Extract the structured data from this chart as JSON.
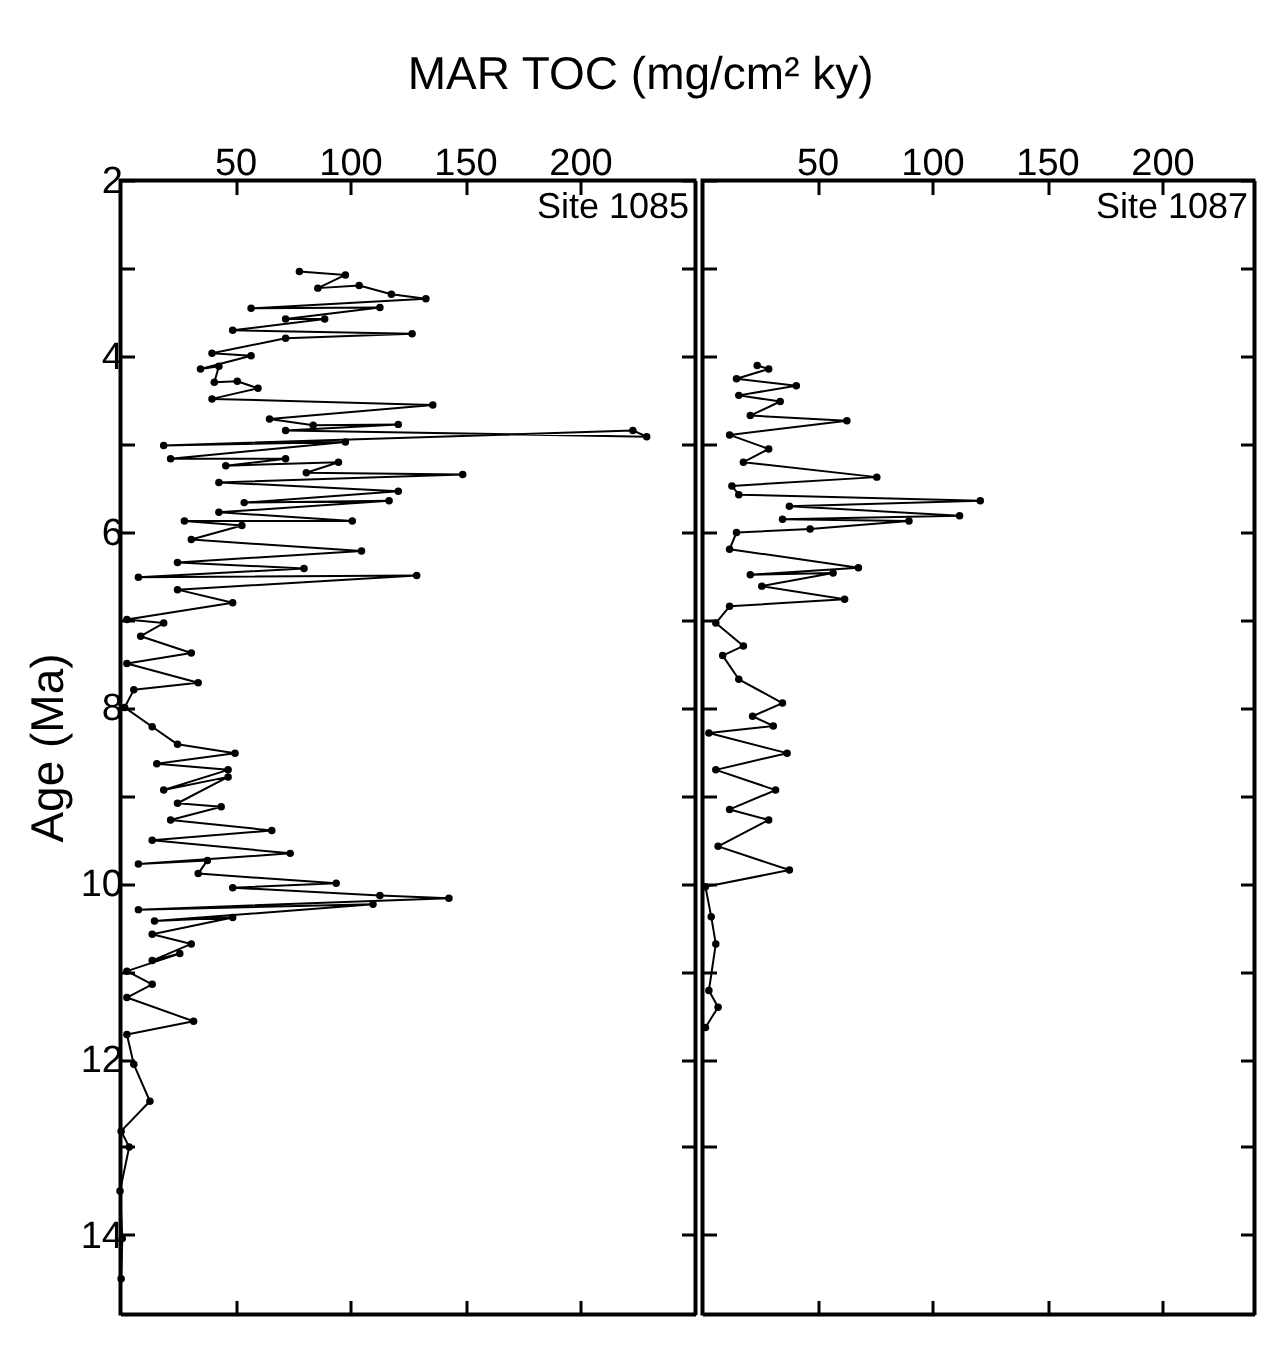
{
  "chart_data": [
    {
      "type": "line",
      "xlabel": "MAR TOC (mg/cm² ky)",
      "ylabel": "Age (Ma)",
      "annotations": [
        "Site 1085"
      ],
      "marker": "circle",
      "line_style": "solid",
      "xlim": [
        0,
        250
      ],
      "xticks": [
        50,
        100,
        150,
        200
      ],
      "ylim": [
        14.9,
        2
      ],
      "yticks": [
        2,
        {
          "value": 3,
          "label": null
        },
        4,
        {
          "value": 5,
          "label": null
        },
        6,
        {
          "value": 7,
          "label": null
        },
        8,
        {
          "value": 9,
          "label": null
        },
        10,
        {
          "value": 11,
          "label": null
        },
        12,
        {
          "value": 13,
          "label": null
        },
        14
      ],
      "series": [
        {
          "color": "#000000",
          "x": [
            78,
            98,
            86,
            104,
            118,
            133,
            57,
            113,
            72,
            89,
            49,
            127,
            72,
            40,
            57,
            35,
            43,
            41,
            51,
            60,
            40,
            136,
            65,
            84,
            121,
            72,
            229,
            223,
            19,
            98,
            22,
            72,
            46,
            95,
            81,
            149,
            43,
            121,
            54,
            117,
            43,
            101,
            28,
            53,
            31,
            105,
            25,
            80,
            8,
            129,
            25,
            49,
            3,
            19,
            9,
            31,
            3,
            34,
            6,
            2,
            14,
            25,
            50,
            16,
            47,
            19,
            47,
            25,
            44,
            22,
            66,
            14,
            74,
            8,
            38,
            34,
            94,
            49,
            113,
            143,
            8,
            110,
            15,
            49,
            14,
            31,
            14,
            26,
            3,
            14,
            3,
            32,
            3,
            6,
            13,
            0.5,
            4,
            0,
            1,
            0.5
          ],
          "values": [
            3.04,
            3.08,
            3.23,
            3.2,
            3.3,
            3.35,
            3.46,
            3.45,
            3.58,
            3.58,
            3.71,
            3.75,
            3.8,
            3.97,
            4.0,
            4.15,
            4.12,
            4.3,
            4.29,
            4.37,
            4.49,
            4.56,
            4.72,
            4.79,
            4.78,
            4.85,
            4.92,
            4.85,
            5.02,
            4.98,
            5.17,
            5.17,
            5.25,
            5.21,
            5.33,
            5.35,
            5.44,
            5.54,
            5.67,
            5.65,
            5.78,
            5.88,
            5.88,
            5.93,
            6.09,
            6.22,
            6.35,
            6.42,
            6.52,
            6.5,
            6.66,
            6.81,
            7.0,
            7.04,
            7.19,
            7.38,
            7.5,
            7.72,
            7.8,
            8.0,
            8.22,
            8.42,
            8.52,
            8.64,
            8.71,
            8.94,
            8.79,
            9.09,
            9.13,
            9.28,
            9.4,
            9.51,
            9.66,
            9.78,
            9.74,
            9.89,
            10.0,
            10.05,
            10.14,
            10.17,
            10.3,
            10.24,
            10.43,
            10.39,
            10.58,
            10.69,
            10.88,
            10.8,
            11.0,
            11.15,
            11.3,
            11.57,
            11.72,
            12.06,
            12.48,
            12.82,
            13.0,
            13.5,
            14.04,
            14.5
          ]
        }
      ]
    },
    {
      "type": "line",
      "annotations": [
        "Site 1087"
      ],
      "marker": "circle",
      "line_style": "solid",
      "tick_labels": "x",
      "xlim": [
        0,
        240
      ],
      "xticks": [
        50,
        100,
        150,
        200
      ],
      "ylim": [
        14.9,
        2
      ],
      "yticks": [
        2,
        {
          "value": 3,
          "label": null
        },
        4,
        {
          "value": 5,
          "label": null
        },
        6,
        {
          "value": 7,
          "label": null
        },
        8,
        {
          "value": 9,
          "label": null
        },
        10,
        {
          "value": 11,
          "label": null
        },
        12,
        {
          "value": 13,
          "label": null
        },
        14
      ],
      "series": [
        {
          "color": "#000000",
          "x": [
            24,
            29,
            15,
            41,
            16,
            34,
            21,
            63,
            12,
            29,
            18,
            76,
            13,
            16,
            121,
            38,
            112,
            35,
            90,
            47,
            15,
            12,
            68,
            21,
            57,
            26,
            62,
            12,
            6,
            18,
            9,
            16,
            35,
            22,
            31,
            3,
            37,
            6,
            32,
            12,
            29,
            7,
            38,
            1.5,
            4,
            6,
            3,
            7,
            1.5
          ],
          "values": [
            4.11,
            4.15,
            4.26,
            4.34,
            4.45,
            4.52,
            4.68,
            4.74,
            4.9,
            5.06,
            5.21,
            5.38,
            5.48,
            5.58,
            5.65,
            5.71,
            5.82,
            5.86,
            5.88,
            5.97,
            6.01,
            6.2,
            6.41,
            6.49,
            6.47,
            6.62,
            6.77,
            6.85,
            7.04,
            7.3,
            7.41,
            7.68,
            7.95,
            8.1,
            8.21,
            8.29,
            8.52,
            8.71,
            8.94,
            9.16,
            9.28,
            9.58,
            9.85,
            10.04,
            10.38,
            10.69,
            11.22,
            11.41,
            11.64
          ]
        }
      ]
    }
  ]
}
